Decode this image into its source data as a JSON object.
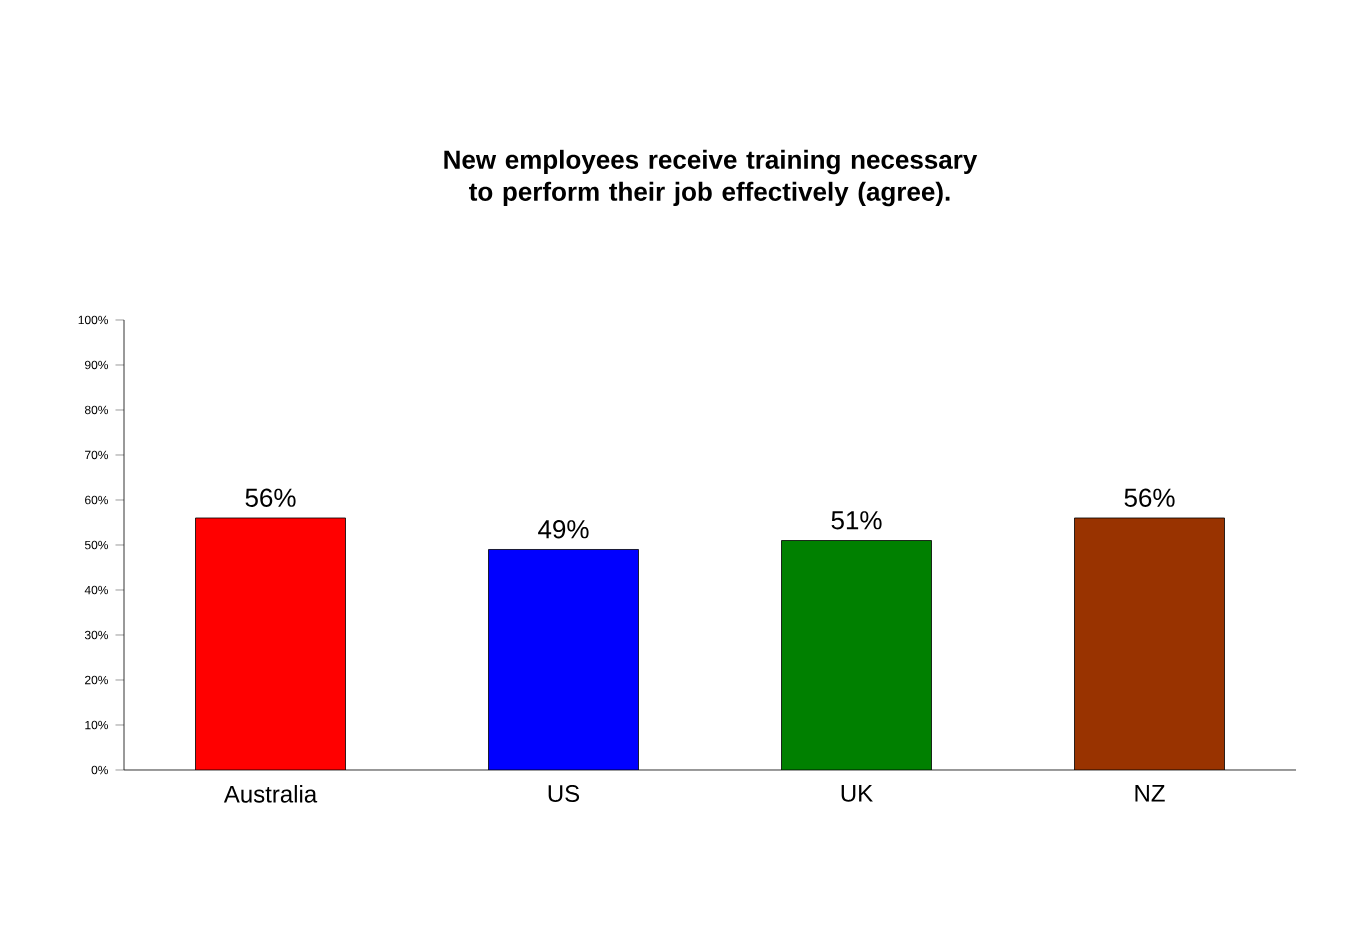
{
  "chart_data": {
    "type": "bar",
    "title": "New employees receive training necessary to perform their job effectively (agree).",
    "categories": [
      "Australia",
      "US",
      "UK",
      "NZ"
    ],
    "values": [
      56,
      49,
      51,
      56
    ],
    "colors": [
      "#ff0000",
      "#0000ff",
      "#008000",
      "#993300"
    ],
    "value_labels": [
      "56%",
      "49%",
      "51%",
      "56%"
    ],
    "ylim": [
      0,
      100
    ],
    "yticks": [
      {
        "value": 0,
        "label": "0%"
      },
      {
        "value": 10,
        "label": "10%"
      },
      {
        "value": 20,
        "label": "20%"
      },
      {
        "value": 30,
        "label": "30%"
      },
      {
        "value": 40,
        "label": "40%"
      },
      {
        "value": 50,
        "label": "50%"
      },
      {
        "value": 60,
        "label": "60%"
      },
      {
        "value": 70,
        "label": "70%"
      },
      {
        "value": 80,
        "label": "80%"
      },
      {
        "value": 90,
        "label": "90%"
      },
      {
        "value": 100,
        "label": "100%"
      }
    ],
    "grid": false
  }
}
